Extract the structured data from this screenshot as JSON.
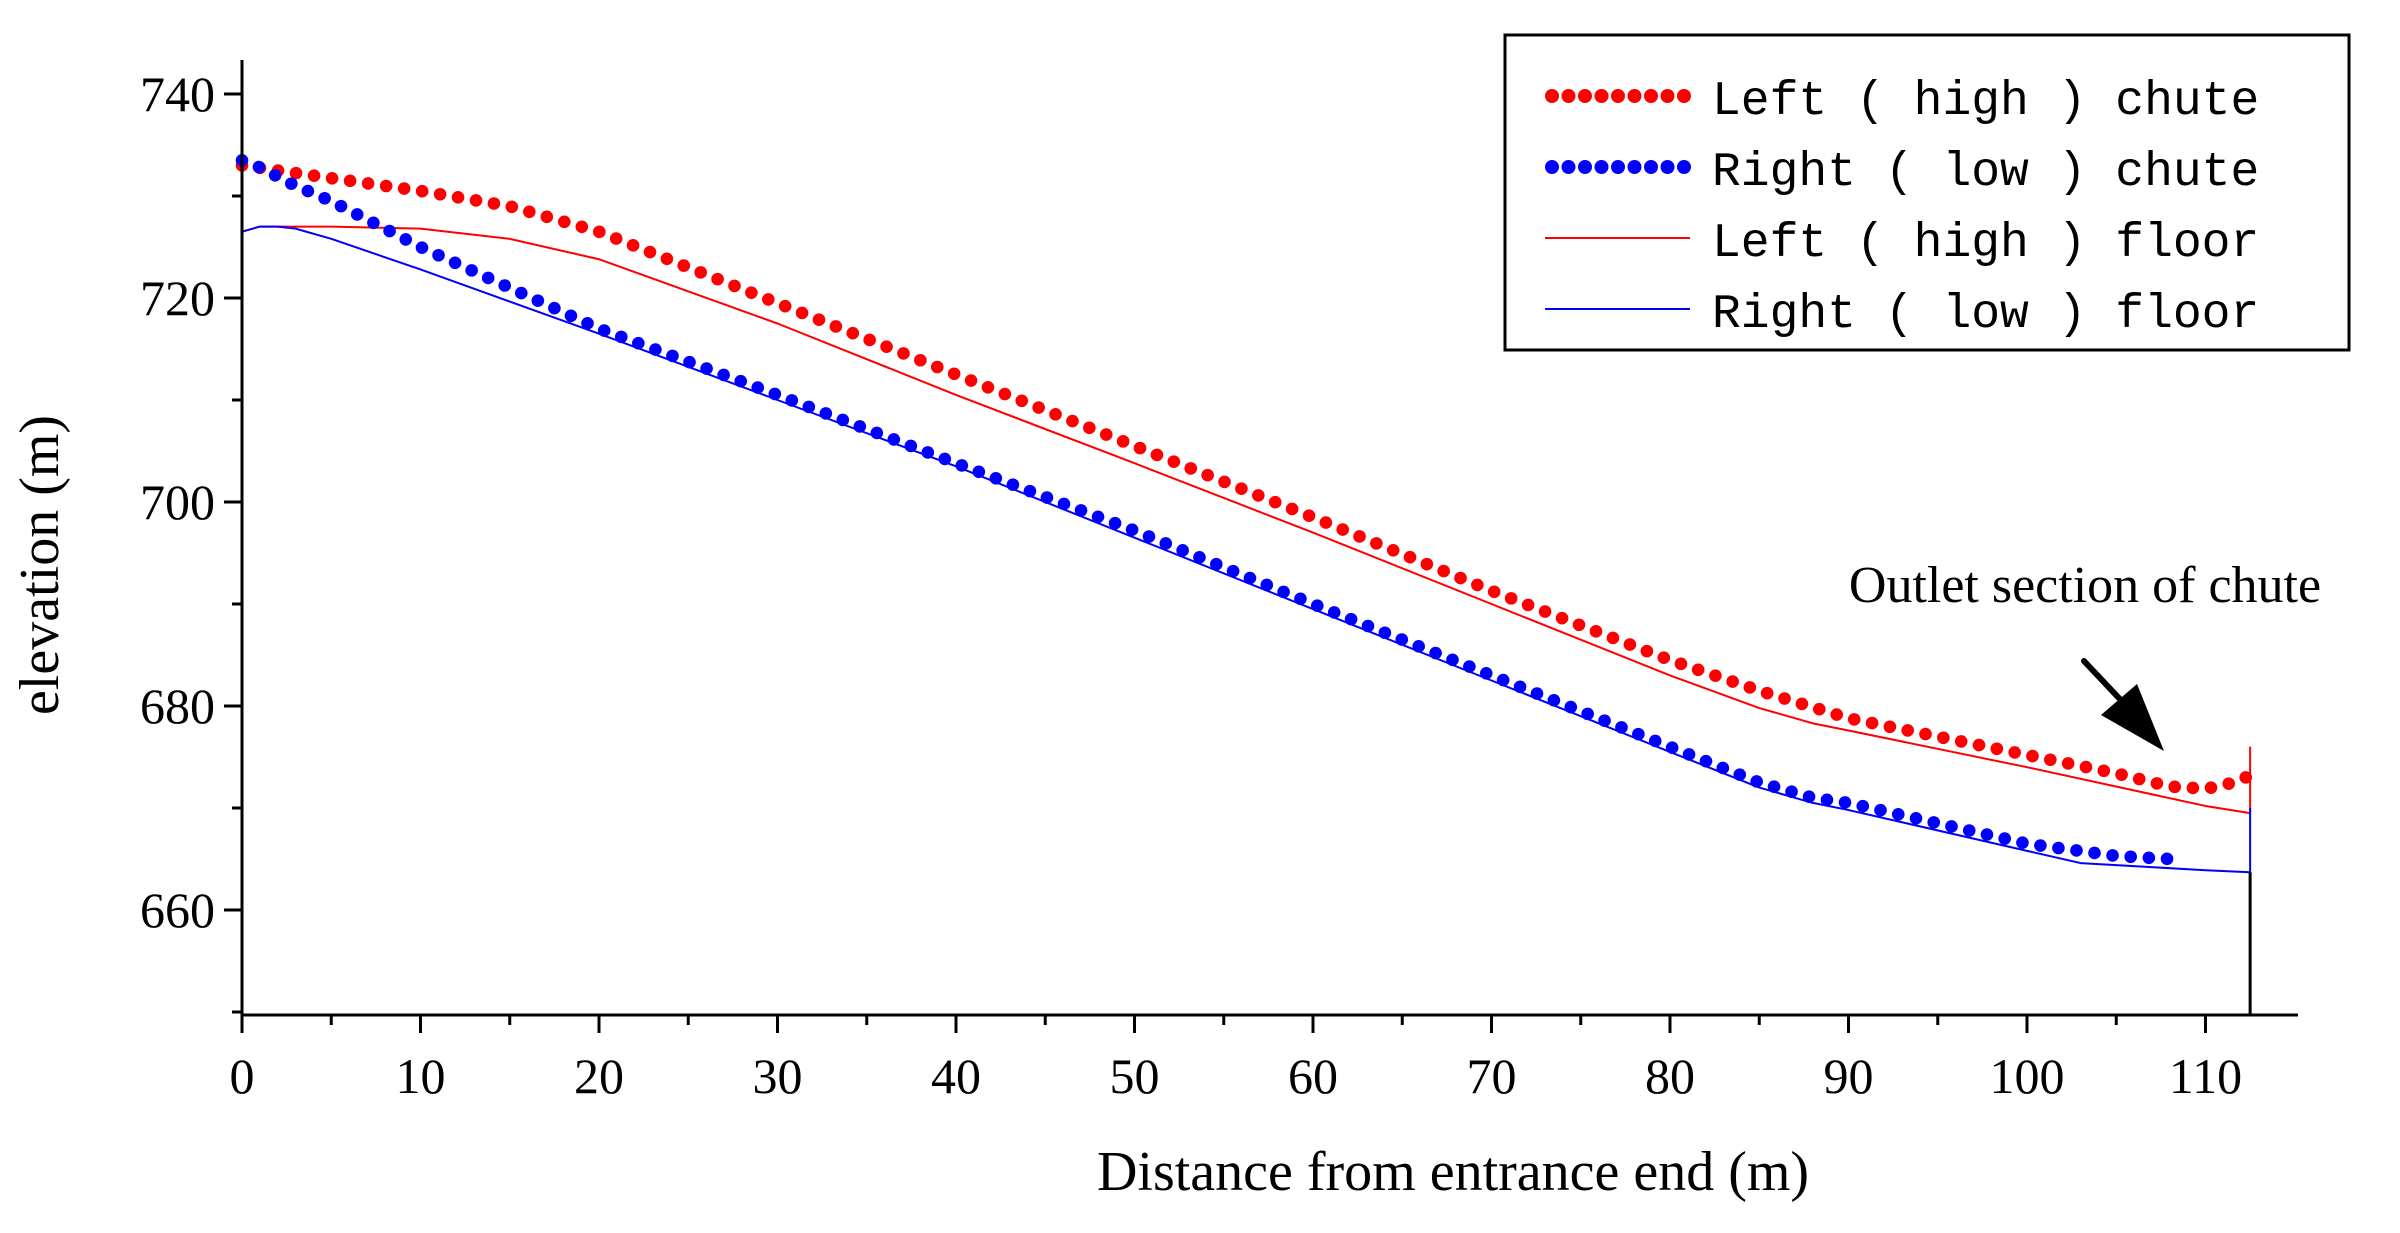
{
  "chart_data": {
    "type": "line",
    "title": "",
    "xlabel": "Distance from entrance end (m)",
    "ylabel": "elevation (m)",
    "xlim": [
      0,
      115
    ],
    "ylim": [
      650,
      742
    ],
    "xticks": [
      0,
      10,
      20,
      30,
      40,
      50,
      60,
      70,
      80,
      90,
      100,
      110
    ],
    "xtick_labels": [
      "0",
      "10",
      "20",
      "30",
      "40",
      "50",
      "60",
      "70",
      "80",
      "90",
      "100",
      "110"
    ],
    "yticks": [
      660,
      680,
      700,
      720,
      740
    ],
    "ytick_labels": [
      "660",
      "680",
      "700",
      "720",
      "740"
    ],
    "legend": {
      "placement": "top-right",
      "entries": [
        "Left ( high ) chute",
        "Right ( low ) chute",
        "Left ( high ) floor",
        "Right ( low ) floor"
      ]
    },
    "annotation": {
      "text": "Outlet section of chute",
      "arrow_to": [
        107.5,
        672.5
      ]
    },
    "outlet_x": 112.5,
    "series": [
      {
        "name": "Left ( high ) chute",
        "style": "dotted",
        "color": "#ff0000",
        "x": [
          0,
          10,
          15,
          20,
          30,
          40,
          50,
          60,
          70,
          80,
          85,
          90,
          100,
          105,
          108,
          110,
          111,
          112,
          112.5
        ],
        "values": [
          733,
          730.5,
          729,
          726.5,
          719.5,
          712.5,
          705.5,
          698.5,
          691.3,
          684.5,
          681.5,
          678.8,
          675.2,
          673.4,
          672.1,
          671.9,
          672.2,
          672.8,
          673.2
        ]
      },
      {
        "name": "Right ( low ) chute",
        "style": "dotted",
        "color": "#0000ff",
        "x": [
          0,
          1,
          3,
          5,
          10,
          20,
          30,
          40,
          50,
          60,
          70,
          80,
          85,
          88,
          90,
          100,
          105,
          108
        ],
        "values": [
          733.5,
          732.8,
          731,
          729.5,
          725,
          717,
          710.5,
          703.8,
          697.2,
          690,
          683,
          676,
          672.5,
          671,
          670.5,
          666.5,
          665.3,
          665.0
        ]
      },
      {
        "name": "Left ( high ) floor",
        "style": "solid",
        "color": "#ff0000",
        "x": [
          0,
          1,
          3,
          5,
          10,
          15,
          20,
          30,
          40,
          50,
          60,
          70,
          80,
          85,
          88,
          90,
          100,
          110,
          112.5
        ],
        "values": [
          726.5,
          727,
          727,
          727,
          726.8,
          725.8,
          723.8,
          717.5,
          710.5,
          703.8,
          697,
          690,
          683,
          679.8,
          678.3,
          677.6,
          674,
          670.2,
          669.5
        ]
      },
      {
        "name": "Right ( low ) floor",
        "style": "solid",
        "color": "#0000ff",
        "x": [
          0,
          1,
          2,
          3,
          5,
          10,
          20,
          30,
          40,
          50,
          60,
          70,
          80,
          85,
          88,
          90,
          100,
          103,
          105,
          110,
          112.5
        ],
        "values": [
          726.5,
          727,
          727,
          726.8,
          725.8,
          722.8,
          716.5,
          710,
          703.5,
          696.5,
          689.5,
          682.5,
          675.5,
          672,
          670.5,
          669.8,
          665.8,
          664.6,
          664.4,
          663.9,
          663.7
        ]
      }
    ],
    "outlet_marker_lines": [
      {
        "color": "#ff0000",
        "y_range": [
          669.5,
          676
        ]
      },
      {
        "color": "#0000ff",
        "y_range": [
          663.7,
          670
        ]
      }
    ]
  }
}
